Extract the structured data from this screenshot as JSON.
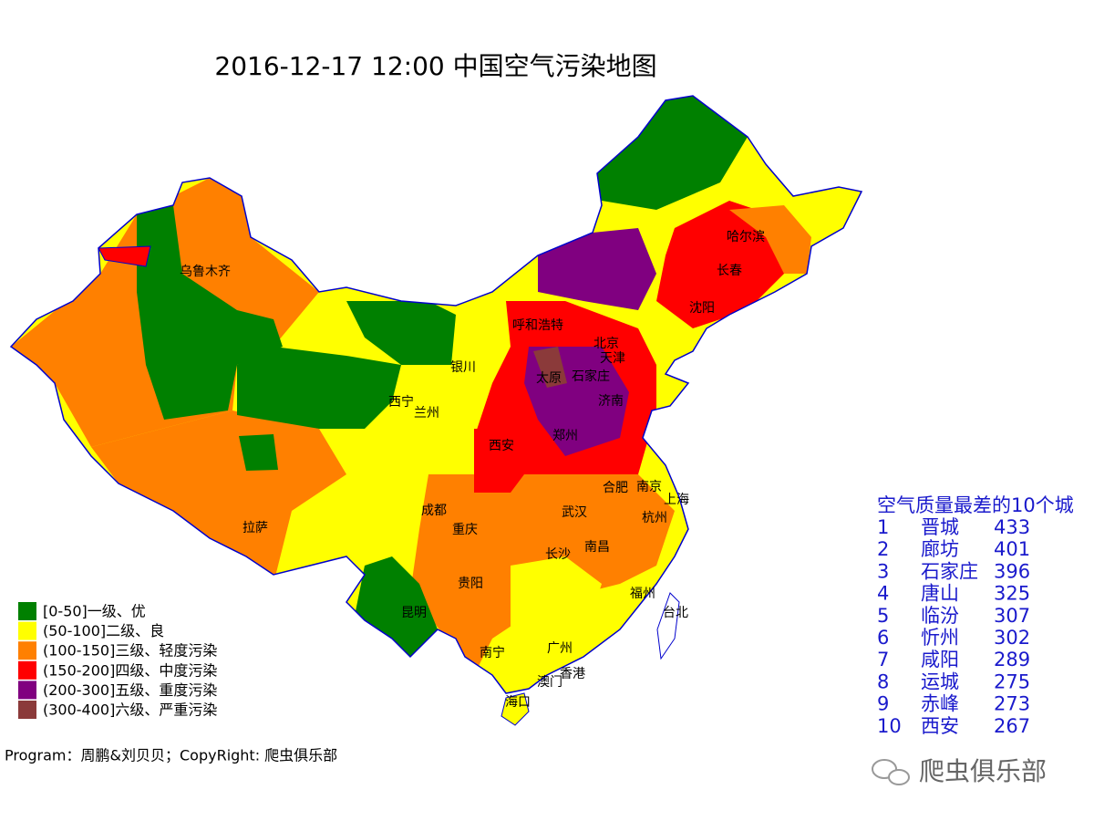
{
  "header": {
    "title": "2016-12-17 12:00 中国空气污染地图"
  },
  "legend": [
    {
      "label": "[0-50]一级、优",
      "color": "#008000"
    },
    {
      "label": "(50-100]二级、良",
      "color": "#ffff00"
    },
    {
      "label": "(100-150]三级、轻度污染",
      "color": "#ff8000"
    },
    {
      "label": "(150-200]四级、中度污染",
      "color": "#ff0000"
    },
    {
      "label": "(200-300]五级、重度污染",
      "color": "#800080"
    },
    {
      "label": "(300-400]六级、严重污染",
      "color": "#8b3a3a"
    }
  ],
  "cities": [
    "乌鲁木齐",
    "拉萨",
    "西宁",
    "兰州",
    "银川",
    "呼和浩特",
    "北京",
    "天津",
    "太原",
    "石家庄",
    "济南",
    "郑州",
    "西安",
    "沈阳",
    "长春",
    "哈尔滨",
    "成都",
    "重庆",
    "贵阳",
    "昆明",
    "南宁",
    "广州",
    "澳门",
    "香港",
    "海口",
    "长沙",
    "南昌",
    "武汉",
    "合肥",
    "南京",
    "上海",
    "杭州",
    "福州",
    "台北"
  ],
  "ranking": {
    "title": "空气质量最差的10个城",
    "rows": [
      [
        1,
        "晋城",
        433
      ],
      [
        2,
        "廊坊",
        401
      ],
      [
        3,
        "石家庄",
        396
      ],
      [
        4,
        "唐山",
        325
      ],
      [
        5,
        "临汾",
        307
      ],
      [
        6,
        "忻州",
        302
      ],
      [
        7,
        "咸阳",
        289
      ],
      [
        8,
        "运城",
        275
      ],
      [
        9,
        "赤峰",
        273
      ],
      [
        10,
        "西安",
        267
      ]
    ]
  },
  "footer": {
    "credit": "Program：周鹏&刘贝贝；CopyRight: 爬虫俱乐部",
    "watermark": "爬虫俱乐部"
  }
}
